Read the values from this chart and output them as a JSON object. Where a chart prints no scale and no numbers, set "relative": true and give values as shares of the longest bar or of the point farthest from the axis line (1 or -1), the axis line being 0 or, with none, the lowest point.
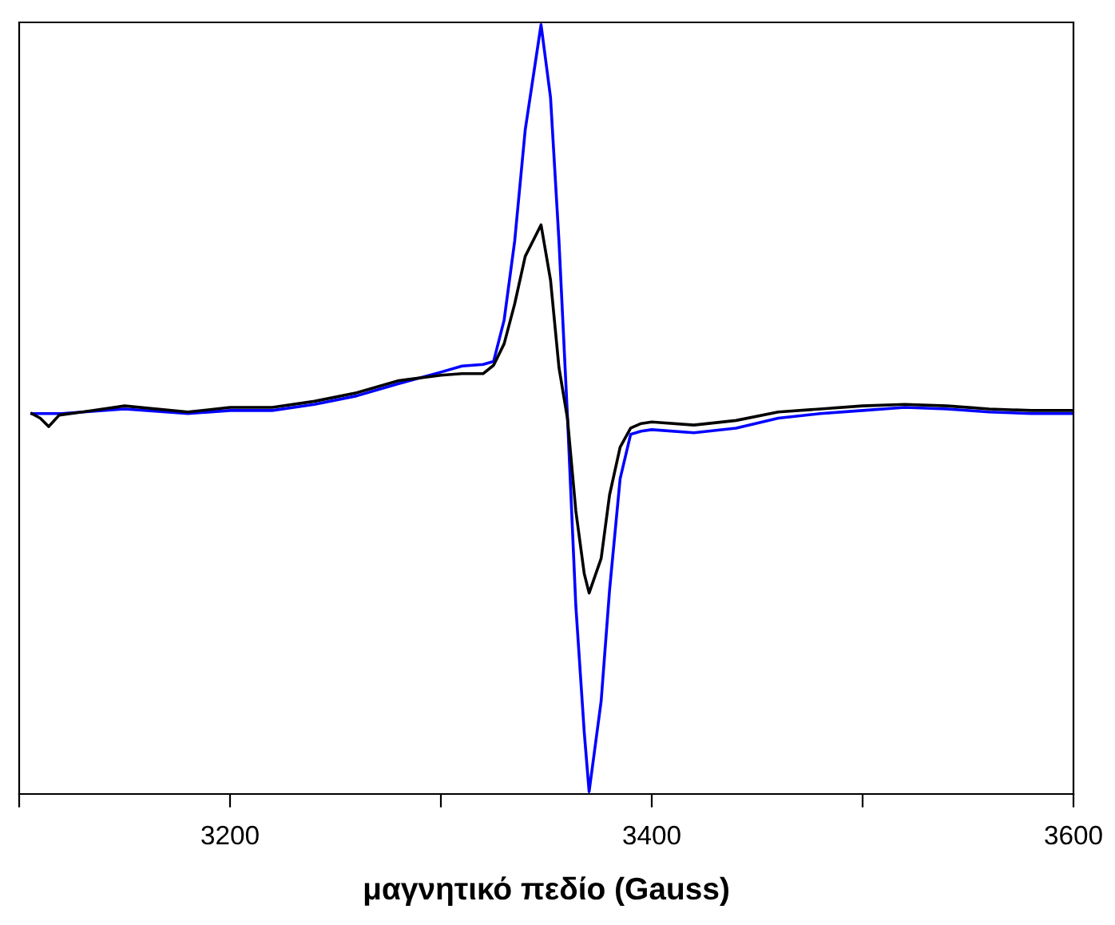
{
  "chart_data": {
    "type": "line",
    "relative": true,
    "xlabel": "μαγνητικό πεδίο (Gauss)",
    "xlim": [
      3100,
      3600
    ],
    "xticks": [
      {
        "value": 3100,
        "label": null
      },
      3200,
      {
        "value": 3300,
        "label": null
      },
      3400,
      {
        "value": 3500,
        "label": null
      },
      3600
    ],
    "grid": false,
    "series": [
      {
        "color": "#0000ff",
        "x": [
          3106,
          3120,
          3150,
          3180,
          3200,
          3220,
          3240,
          3260,
          3280,
          3300,
          3310,
          3320,
          3325,
          3330,
          3335,
          3340,
          3347.5,
          3352,
          3356,
          3360,
          3364,
          3368,
          3370.3,
          3376,
          3380,
          3385,
          3390,
          3395,
          3400,
          3420,
          3440,
          3460,
          3480,
          3500,
          3520,
          3540,
          3560,
          3580,
          3600
        ],
        "values": [
          0.493,
          0.493,
          0.499,
          0.493,
          0.497,
          0.497,
          0.505,
          0.516,
          0.532,
          0.547,
          0.555,
          0.557,
          0.561,
          0.615,
          0.718,
          0.863,
          1,
          0.905,
          0.718,
          0.491,
          0.242,
          0.077,
          0,
          0.118,
          0.263,
          0.408,
          0.466,
          0.47,
          0.472,
          0.468,
          0.474,
          0.487,
          0.493,
          0.497,
          0.501,
          0.499,
          0.495,
          0.493,
          0.493
        ]
      },
      {
        "color": "#000000",
        "x": [
          3106,
          3110,
          3114,
          3119,
          3130,
          3150,
          3180,
          3200,
          3220,
          3240,
          3260,
          3280,
          3300,
          3310,
          3320,
          3325,
          3330,
          3335,
          3340,
          3347.5,
          3352,
          3356,
          3360,
          3364,
          3368,
          3370.3,
          3376,
          3380,
          3385,
          3390,
          3395,
          3400,
          3420,
          3440,
          3460,
          3480,
          3500,
          3520,
          3540,
          3560,
          3580,
          3600
        ],
        "values": [
          0.493,
          0.487,
          0.476,
          0.491,
          0.495,
          0.503,
          0.495,
          0.501,
          0.501,
          0.509,
          0.52,
          0.536,
          0.543,
          0.545,
          0.545,
          0.556,
          0.584,
          0.636,
          0.698,
          0.739,
          0.667,
          0.553,
          0.487,
          0.366,
          0.284,
          0.259,
          0.304,
          0.387,
          0.449,
          0.474,
          0.48,
          0.482,
          0.478,
          0.484,
          0.495,
          0.499,
          0.503,
          0.505,
          0.503,
          0.499,
          0.497,
          0.497
        ]
      }
    ]
  }
}
